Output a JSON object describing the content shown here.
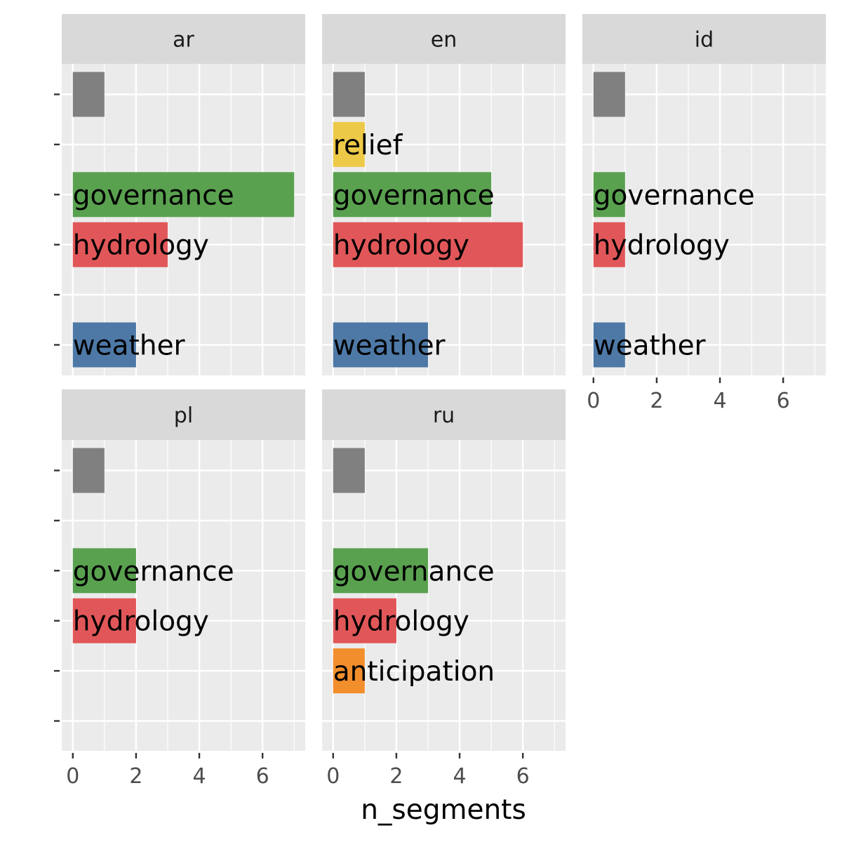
{
  "chart_data": {
    "type": "bar",
    "orientation": "horizontal",
    "facet_variable": "language",
    "xlabel": "n_segments",
    "ylabel": "",
    "xlim": [
      -0.35,
      7.35
    ],
    "x_ticks": [
      0,
      2,
      4,
      6
    ],
    "grid": true,
    "y_rows": 6,
    "colors": {
      "uncategorized": "#808080",
      "relief": "#EDC948",
      "governance": "#59A14F",
      "hydrology": "#E15759",
      "anticipation": "#F28E2B",
      "weather": "#4E79A7"
    },
    "panels": [
      {
        "facet": "ar",
        "bars": [
          {
            "row": 0,
            "category": "",
            "value": 1,
            "color_key": "uncategorized"
          },
          {
            "row": 2,
            "category": "governance",
            "value": 7,
            "color_key": "governance"
          },
          {
            "row": 3,
            "category": "hydrology",
            "value": 3,
            "color_key": "hydrology"
          },
          {
            "row": 5,
            "category": "weather",
            "value": 2,
            "color_key": "weather"
          }
        ]
      },
      {
        "facet": "en",
        "bars": [
          {
            "row": 0,
            "category": "",
            "value": 1,
            "color_key": "uncategorized"
          },
          {
            "row": 1,
            "category": "relief",
            "value": 1,
            "color_key": "relief"
          },
          {
            "row": 2,
            "category": "governance",
            "value": 5,
            "color_key": "governance"
          },
          {
            "row": 3,
            "category": "hydrology",
            "value": 6,
            "color_key": "hydrology"
          },
          {
            "row": 5,
            "category": "weather",
            "value": 3,
            "color_key": "weather"
          }
        ]
      },
      {
        "facet": "id",
        "bars": [
          {
            "row": 0,
            "category": "",
            "value": 1,
            "color_key": "uncategorized"
          },
          {
            "row": 2,
            "category": "governance",
            "value": 1,
            "color_key": "governance"
          },
          {
            "row": 3,
            "category": "hydrology",
            "value": 1,
            "color_key": "hydrology"
          },
          {
            "row": 5,
            "category": "weather",
            "value": 1,
            "color_key": "weather"
          }
        ]
      },
      {
        "facet": "pl",
        "bars": [
          {
            "row": 0,
            "category": "",
            "value": 1,
            "color_key": "uncategorized"
          },
          {
            "row": 2,
            "category": "governance",
            "value": 2,
            "color_key": "governance"
          },
          {
            "row": 3,
            "category": "hydrology",
            "value": 2,
            "color_key": "hydrology"
          }
        ]
      },
      {
        "facet": "ru",
        "bars": [
          {
            "row": 0,
            "category": "",
            "value": 1,
            "color_key": "uncategorized"
          },
          {
            "row": 2,
            "category": "governance",
            "value": 3,
            "color_key": "governance"
          },
          {
            "row": 3,
            "category": "hydrology",
            "value": 2,
            "color_key": "hydrology"
          },
          {
            "row": 4,
            "category": "anticipation",
            "value": 1,
            "color_key": "anticipation"
          }
        ]
      }
    ]
  }
}
